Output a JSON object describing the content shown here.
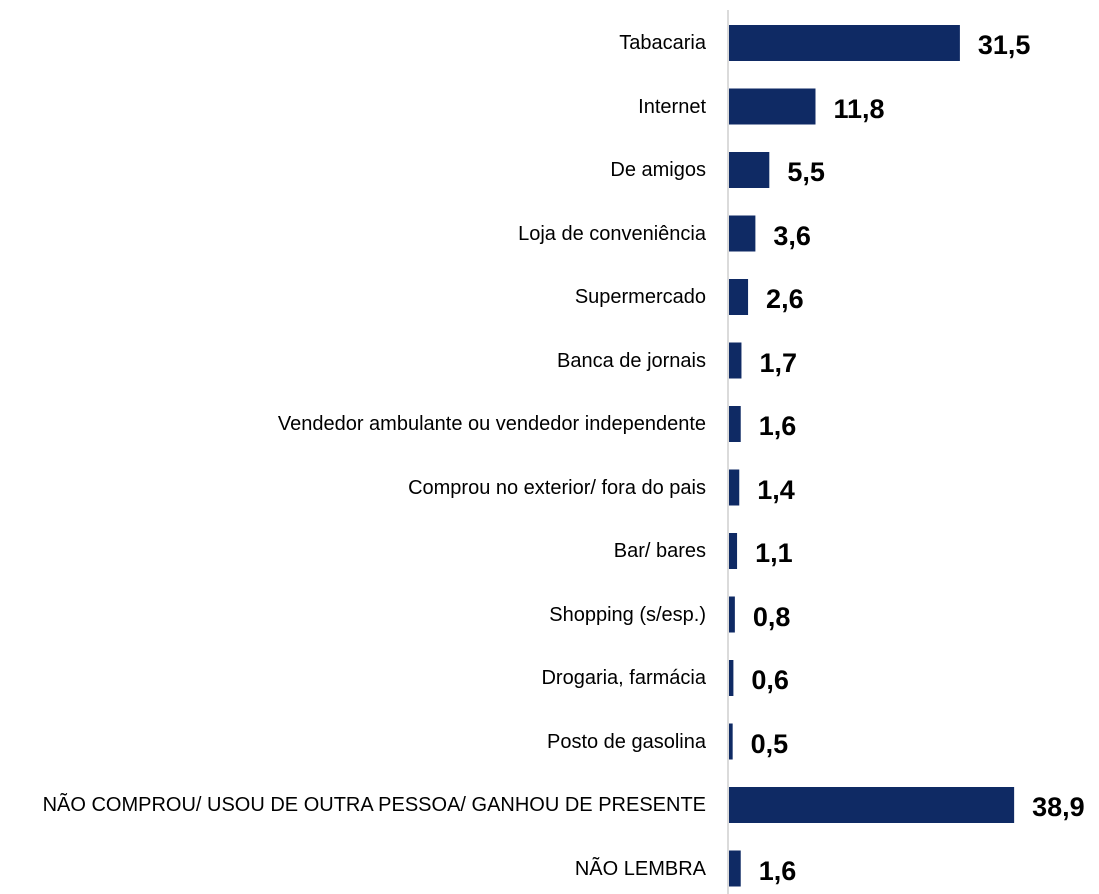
{
  "chart_data": {
    "type": "bar",
    "orientation": "horizontal",
    "color": "#0f2a64",
    "categories": [
      "Tabacaria",
      "Internet",
      "De amigos",
      "Loja de conveniência",
      "Supermercado",
      "Banca de jornais",
      "Vendedor ambulante ou vendedor independente",
      "Comprou no exterior/ fora do pais",
      "Bar/ bares",
      "Shopping (s/esp.)",
      "Drogaria, farmácia",
      "Posto de gasolina",
      "NÃO COMPROU/ USOU DE OUTRA PESSOA/ GANHOU DE PRESENTE",
      "NÃO LEMBRA"
    ],
    "values": [
      31.5,
      11.8,
      5.5,
      3.6,
      2.6,
      1.7,
      1.6,
      1.4,
      1.1,
      0.8,
      0.6,
      0.5,
      38.9,
      1.6
    ],
    "value_labels": [
      "31,5",
      "11,8",
      "5,5",
      "3,6",
      "2,6",
      "1,7",
      "1,6",
      "1,4",
      "1,1",
      "0,8",
      "0,6",
      "0,5",
      "38,9",
      "1,6"
    ]
  }
}
